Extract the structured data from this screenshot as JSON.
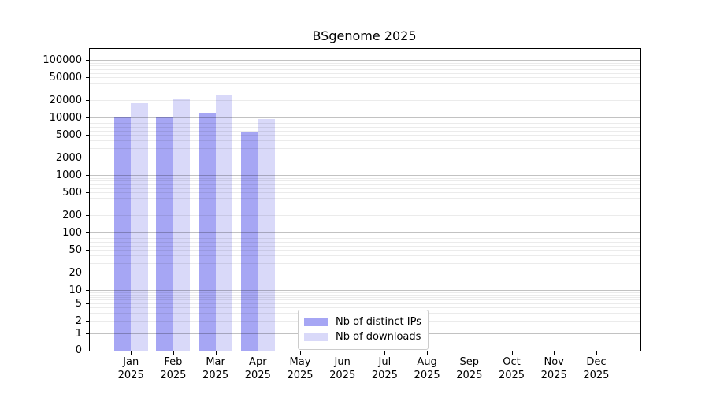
{
  "title": "BSgenome 2025",
  "chart_data": {
    "type": "bar",
    "title": "BSgenome 2025",
    "categories": [
      "Jan 2025",
      "Feb 2025",
      "Mar 2025",
      "Apr 2025",
      "May 2025",
      "Jun 2025",
      "Jul 2025",
      "Aug 2025",
      "Sep 2025",
      "Oct 2025",
      "Nov 2025",
      "Dec 2025"
    ],
    "series": [
      {
        "name": "Nb of distinct IPs",
        "color": "#a6a6f4",
        "values": [
          10700,
          10900,
          12300,
          5800,
          0,
          0,
          0,
          0,
          0,
          0,
          0,
          0
        ]
      },
      {
        "name": "Nb of downloads",
        "color": "#d9d9f9",
        "values": [
          18500,
          21300,
          24900,
          9900,
          0,
          0,
          0,
          0,
          0,
          0,
          0,
          0
        ]
      }
    ],
    "xlabel": "",
    "ylabel": "",
    "yscale": "log-with-zero",
    "y_ticks": [
      100000,
      50000,
      20000,
      10000,
      5000,
      2000,
      1000,
      500,
      200,
      100,
      50,
      20,
      10,
      5,
      2,
      1,
      0
    ],
    "ylim": [
      0,
      160000
    ],
    "grid": true,
    "legend_position": "inside-bottom-center"
  }
}
